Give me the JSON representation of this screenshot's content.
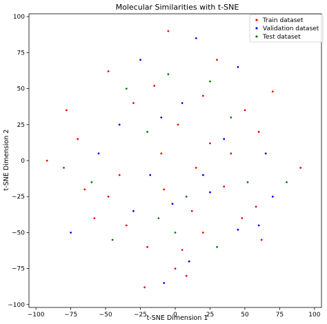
{
  "chart_data": {
    "type": "scatter",
    "title": "Molecular Similarities with t-SNE",
    "xlabel": "t-SNE Dimension 1",
    "ylabel": "t-SNE Dimension 2",
    "xlim": [
      -105,
      105
    ],
    "ylim": [
      -102,
      102
    ],
    "xticks": [
      "−100",
      "−75",
      "−50",
      "−25",
      "0",
      "25",
      "50",
      "75",
      "100"
    ],
    "xtick_values": [
      -100,
      -75,
      -50,
      -25,
      0,
      25,
      50,
      75,
      100
    ],
    "yticks": [
      "100",
      "75",
      "50",
      "25",
      "0",
      "−25",
      "−50",
      "−75",
      "−100"
    ],
    "ytick_values": [
      100,
      75,
      50,
      25,
      0,
      -25,
      -50,
      -75,
      -100
    ],
    "grid": false,
    "legend_position": "upper-right",
    "series": [
      {
        "name": "Train dataset",
        "color": "#ff0000",
        "points": [
          [
            -8,
            -20
          ],
          [
            12,
            -35
          ],
          [
            35,
            -18
          ],
          [
            48,
            -40
          ],
          [
            -35,
            -45
          ],
          [
            -20,
            -60
          ],
          [
            5,
            -62
          ],
          [
            58,
            -32
          ],
          [
            40,
            5
          ],
          [
            25,
            12
          ],
          [
            -10,
            5
          ],
          [
            -40,
            -10
          ],
          [
            15,
            -5
          ],
          [
            62,
            -55
          ],
          [
            -58,
            -40
          ],
          [
            -65,
            -20
          ],
          [
            20,
            45
          ],
          [
            -15,
            52
          ],
          [
            30,
            70
          ],
          [
            -5,
            90
          ],
          [
            8,
            -80
          ],
          [
            -22,
            -88
          ],
          [
            0,
            -75
          ],
          [
            50,
            35
          ],
          [
            -70,
            15
          ],
          [
            -92,
            0
          ],
          [
            90,
            -5
          ],
          [
            -48,
            62
          ],
          [
            -30,
            40
          ],
          [
            70,
            48
          ],
          [
            60,
            20
          ],
          [
            -78,
            35
          ],
          [
            20,
            -50
          ],
          [
            -48,
            -25
          ],
          [
            2,
            25
          ]
        ]
      },
      {
        "name": "Validation dataset",
        "color": "#0000ff",
        "points": [
          [
            -2,
            -30
          ],
          [
            25,
            -22
          ],
          [
            45,
            -48
          ],
          [
            -30,
            -35
          ],
          [
            10,
            -70
          ],
          [
            -18,
            -10
          ],
          [
            60,
            -45
          ],
          [
            35,
            15
          ],
          [
            -55,
            5
          ],
          [
            5,
            40
          ],
          [
            -25,
            70
          ],
          [
            65,
            5
          ],
          [
            -75,
            -50
          ],
          [
            15,
            85
          ],
          [
            -8,
            -85
          ],
          [
            45,
            65
          ],
          [
            -40,
            25
          ],
          [
            70,
            -25
          ],
          [
            20,
            -10
          ],
          [
            -10,
            30
          ]
        ]
      },
      {
        "name": "Test dataset",
        "color": "#008000",
        "points": [
          [
            -12,
            -40
          ],
          [
            30,
            -60
          ],
          [
            52,
            -15
          ],
          [
            -45,
            -55
          ],
          [
            8,
            -25
          ],
          [
            -20,
            20
          ],
          [
            40,
            30
          ],
          [
            -60,
            -15
          ],
          [
            25,
            55
          ],
          [
            -35,
            50
          ],
          [
            0,
            -50
          ],
          [
            -80,
            -5
          ],
          [
            80,
            -15
          ],
          [
            -5,
            60
          ]
        ]
      }
    ]
  }
}
